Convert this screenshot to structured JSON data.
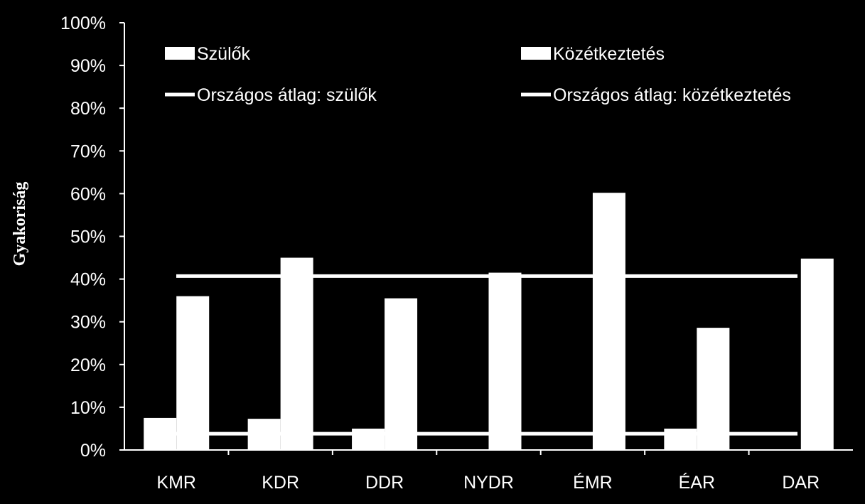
{
  "chart_data": {
    "type": "bar",
    "categories": [
      "KMR",
      "KDR",
      "DDR",
      "NYDR",
      "ÉMR",
      "ÉAR",
      "DAR"
    ],
    "series": [
      {
        "name": "Szülők",
        "values": [
          7.5,
          7.3,
          5.0,
          0,
          0,
          5.0,
          0
        ]
      },
      {
        "name": "Közétkeztetés",
        "values": [
          36.0,
          45.0,
          35.5,
          41.5,
          60.2,
          28.6,
          44.8
        ]
      }
    ],
    "reference_lines": [
      {
        "name": "Országos átlag: szülők",
        "value": 3.8
      },
      {
        "name": "Országos átlag: közétkeztetés",
        "value": 40.7
      }
    ],
    "ylabel": "Gyakoriság",
    "ylim": [
      0,
      100
    ],
    "yticks": [
      "0%",
      "10%",
      "20%",
      "30%",
      "40%",
      "50%",
      "60%",
      "70%",
      "80%",
      "90%",
      "100%"
    ],
    "legend_position": "top",
    "colors": {
      "background": "#000000",
      "foreground": "#ffffff"
    }
  }
}
